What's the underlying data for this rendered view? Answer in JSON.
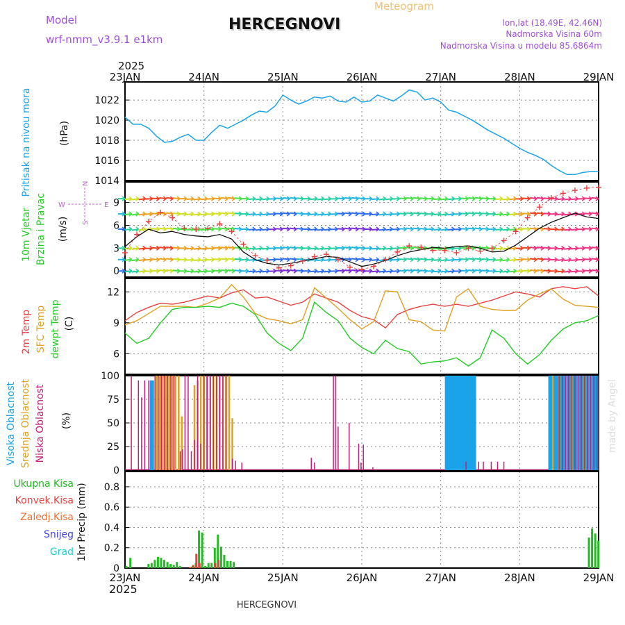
{
  "header": {
    "model_label": "Model",
    "model_name": "wrf-nmm_v3.9.1  e1km",
    "station": "HERCEGNOVI",
    "product": "Meteogram",
    "lonlat": "lon,lat (18.49E, 42.46N)",
    "elevation": "Nadmorska Visina 60m",
    "model_elevation": "Nadmorska Visina u modelu 85.6864m",
    "footer_station": "HERCEGNOVI",
    "credit": "made by Angel",
    "year": "2025"
  },
  "colors": {
    "pressure": "#1aa3e8",
    "temp2m": "#e84040",
    "sfc_temp": "#e0a020",
    "dewpt": "#22cc22",
    "high_cloud": "#1aa3e8",
    "mid_cloud": "#e0a020",
    "low_cloud": "#c0207a",
    "total_precip": "#22bb22",
    "conv_precip": "#e84040",
    "frz_precip": "#f07030",
    "snow": "#4040e0",
    "hail": "#22cccc"
  },
  "chart_data": [
    {
      "type": "line",
      "panel": "pressure",
      "ylabel": [
        "Pritisak na nivou mora",
        "(hPa)"
      ],
      "x_ticks": [
        "23JAN",
        "24JAN",
        "25JAN",
        "26JAN",
        "27JAN",
        "28JAN",
        "29JAN"
      ],
      "yticks": [
        1014,
        1016,
        1018,
        1020,
        1022
      ],
      "ylim": [
        1014,
        1023.8
      ],
      "grid": true,
      "series": [
        {
          "x": [
            0,
            0.1,
            0.2,
            0.3,
            0.4,
            0.5,
            0.6,
            0.7,
            0.8,
            0.9,
            1.0,
            1.1,
            1.2,
            1.3,
            1.4,
            1.5,
            1.6,
            1.7,
            1.8,
            1.9,
            2.0,
            2.1,
            2.2,
            2.3,
            2.4,
            2.5,
            2.6,
            2.7,
            2.8,
            2.9,
            3.0,
            3.1,
            3.2,
            3.3,
            3.4,
            3.5,
            3.6,
            3.7,
            3.8,
            3.9,
            4.0,
            4.1,
            4.2,
            4.3,
            4.4,
            4.5,
            4.6,
            4.7,
            4.8,
            4.9,
            5.0,
            5.1,
            5.2,
            5.3,
            5.4,
            5.5,
            5.6,
            5.7,
            5.8,
            5.9,
            6.0
          ],
          "values": [
            1020.3,
            1019.6,
            1019.6,
            1019.2,
            1018.4,
            1017.8,
            1017.9,
            1018.3,
            1018.6,
            1018.0,
            1018.0,
            1018.8,
            1019.5,
            1019.2,
            1019.6,
            1020.0,
            1020.5,
            1020.9,
            1020.8,
            1021.4,
            1022.5,
            1022.0,
            1021.6,
            1021.9,
            1022.3,
            1022.2,
            1022.4,
            1021.9,
            1021.8,
            1022.3,
            1021.8,
            1021.9,
            1022.5,
            1022.2,
            1021.9,
            1022.4,
            1023.0,
            1022.8,
            1022.0,
            1022.2,
            1021.8,
            1021.0,
            1020.8,
            1020.4,
            1020.0,
            1019.5,
            1019.0,
            1018.6,
            1018.2,
            1017.7,
            1017.2,
            1016.8,
            1016.5,
            1016.1,
            1015.5,
            1015.0,
            1014.6,
            1014.6,
            1014.8,
            1014.9,
            1014.9
          ]
        }
      ]
    },
    {
      "type": "line",
      "panel": "wind",
      "ylabel": [
        "10m Vjetar",
        "Brzina i Pravac",
        "(m/s)"
      ],
      "direction_key": [
        "N",
        "W",
        "E",
        "S"
      ],
      "yticks": [
        0,
        3,
        6,
        9
      ],
      "ylim": [
        -0.8,
        11.7
      ],
      "grid": true,
      "series": [
        {
          "name": "speed",
          "x": [
            0,
            0.15,
            0.3,
            0.45,
            0.6,
            0.75,
            0.9,
            1.05,
            1.2,
            1.35,
            1.5,
            1.65,
            1.8,
            1.95,
            2.1,
            2.25,
            2.4,
            2.55,
            2.7,
            2.85,
            3.0,
            3.15,
            3.3,
            3.45,
            3.6,
            3.75,
            3.9,
            4.05,
            4.2,
            4.35,
            4.5,
            4.65,
            4.8,
            4.95,
            5.1,
            5.25,
            5.4,
            5.55,
            5.7,
            5.85,
            6.0
          ],
          "values": [
            3.2,
            4.5,
            5.5,
            5.0,
            5.2,
            4.8,
            4.6,
            4.5,
            4.8,
            4.2,
            2.5,
            1.5,
            1.0,
            0.8,
            1.0,
            1.3,
            1.6,
            1.9,
            1.8,
            1.2,
            0.6,
            0.9,
            1.4,
            2.0,
            2.5,
            2.8,
            3.1,
            3.0,
            3.2,
            3.3,
            3.0,
            2.5,
            2.6,
            3.4,
            4.5,
            5.6,
            6.4,
            7.0,
            7.6,
            7.1,
            6.9
          ]
        },
        {
          "name": "gust",
          "x": [
            0,
            0.15,
            0.3,
            0.45,
            0.6,
            0.75,
            0.9,
            1.05,
            1.2,
            1.35,
            1.5,
            1.65,
            1.8,
            1.95,
            2.1,
            2.25,
            2.4,
            2.55,
            2.7,
            2.85,
            3.0,
            3.15,
            3.3,
            3.45,
            3.6,
            3.75,
            3.9,
            4.05,
            4.2,
            4.35,
            4.5,
            4.65,
            4.8,
            4.95,
            5.1,
            5.25,
            5.4,
            5.55,
            5.7,
            5.85,
            6.0
          ],
          "values": [
            2.4,
            4.8,
            6.5,
            7.7,
            7.0,
            5.6,
            5.5,
            5.6,
            6.2,
            5.2,
            3.5,
            2.0,
            1.4,
            0.4,
            0.7,
            1.3,
            1.9,
            2.2,
            1.5,
            0.5,
            0.2,
            0.6,
            1.5,
            2.5,
            3.3,
            3.1,
            2.7,
            2.7,
            2.4,
            3.0,
            2.6,
            3.0,
            4.0,
            5.2,
            7.0,
            8.4,
            9.6,
            10.2,
            10.6,
            10.9,
            11.0
          ]
        }
      ]
    },
    {
      "type": "line",
      "panel": "temperature",
      "ylabel": [
        "2m Temp",
        "SFC Temp",
        "dewpt Temp",
        "(C)"
      ],
      "yticks": [
        6,
        9,
        12
      ],
      "ylim": [
        4.0,
        13.3
      ],
      "grid": true,
      "series": [
        {
          "name": "2m Temp",
          "x": [
            0,
            0.15,
            0.3,
            0.45,
            0.6,
            0.75,
            0.9,
            1.05,
            1.2,
            1.35,
            1.5,
            1.65,
            1.8,
            1.95,
            2.1,
            2.25,
            2.4,
            2.55,
            2.7,
            2.85,
            3.0,
            3.15,
            3.3,
            3.45,
            3.6,
            3.75,
            3.9,
            4.05,
            4.2,
            4.35,
            4.5,
            4.65,
            4.8,
            4.95,
            5.1,
            5.25,
            5.4,
            5.55,
            5.7,
            5.85,
            6.0
          ],
          "values": [
            9.2,
            10.0,
            10.5,
            10.9,
            10.8,
            11.0,
            11.3,
            11.6,
            11.4,
            11.9,
            12.2,
            11.4,
            11.5,
            11.1,
            10.7,
            11.0,
            11.8,
            11.4,
            11.0,
            10.2,
            9.6,
            9.3,
            8.5,
            9.8,
            10.3,
            10.6,
            10.8,
            10.6,
            10.8,
            10.6,
            10.9,
            11.2,
            11.6,
            12.0,
            11.8,
            11.5,
            12.3,
            12.5,
            12.3,
            12.5,
            11.6
          ]
        },
        {
          "name": "SFC Temp",
          "x": [
            0,
            0.15,
            0.3,
            0.45,
            0.6,
            0.75,
            0.9,
            1.05,
            1.2,
            1.35,
            1.5,
            1.65,
            1.8,
            1.95,
            2.1,
            2.25,
            2.4,
            2.55,
            2.7,
            2.85,
            3.0,
            3.15,
            3.3,
            3.45,
            3.6,
            3.75,
            3.9,
            4.05,
            4.2,
            4.35,
            4.5,
            4.65,
            4.8,
            4.95,
            5.1,
            5.25,
            5.4,
            5.55,
            5.7,
            5.85,
            6.0
          ],
          "values": [
            8.8,
            9.2,
            9.9,
            10.6,
            10.6,
            10.6,
            10.5,
            10.9,
            11.4,
            12.7,
            11.5,
            9.9,
            9.4,
            9.2,
            8.9,
            9.3,
            12.4,
            11.4,
            10.4,
            9.3,
            8.4,
            9.1,
            12.1,
            12.0,
            9.3,
            9.1,
            8.3,
            8.2,
            11.5,
            12.3,
            10.6,
            10.3,
            10.2,
            10.2,
            11.2,
            11.8,
            12.3,
            11.3,
            10.7,
            10.6,
            10.5
          ]
        },
        {
          "name": "dewpt Temp",
          "x": [
            0,
            0.15,
            0.3,
            0.45,
            0.6,
            0.75,
            0.9,
            1.05,
            1.2,
            1.35,
            1.5,
            1.65,
            1.8,
            1.95,
            2.1,
            2.25,
            2.4,
            2.55,
            2.7,
            2.85,
            3.0,
            3.15,
            3.3,
            3.45,
            3.6,
            3.75,
            3.9,
            4.05,
            4.2,
            4.35,
            4.5,
            4.65,
            4.8,
            4.95,
            5.1,
            5.25,
            5.4,
            5.55,
            5.7,
            5.85,
            6.0
          ],
          "values": [
            8.0,
            7.0,
            7.5,
            9.0,
            10.3,
            10.5,
            10.5,
            10.6,
            10.5,
            10.9,
            10.6,
            9.8,
            8.0,
            7.0,
            6.3,
            7.5,
            11.0,
            10.0,
            9.2,
            7.5,
            6.6,
            6.0,
            7.3,
            6.5,
            6.2,
            5.0,
            5.2,
            5.3,
            5.6,
            4.8,
            5.6,
            8.3,
            7.5,
            6.0,
            5.0,
            5.9,
            7.3,
            8.4,
            9.0,
            9.2,
            9.7
          ]
        }
      ]
    },
    {
      "type": "bar",
      "panel": "cloud",
      "ylabel": [
        "Visoka Oblacnost",
        "Srednja Oblacnost",
        "Niska Oblacnost",
        "(%)"
      ],
      "yticks": [
        0,
        25,
        50,
        75,
        100
      ],
      "ylim": [
        0,
        100
      ],
      "grid": true,
      "series": [
        {
          "name": "Visoka Oblacnost",
          "x": [
            0.33,
            0.35,
            4.07,
            4.09,
            4.11,
            4.13,
            4.15,
            4.17,
            4.19,
            4.21,
            4.23,
            4.25,
            4.27,
            4.29,
            4.31,
            4.33,
            4.35,
            4.37,
            4.39,
            4.41,
            4.43,
            5.38,
            5.4,
            5.42,
            5.44,
            5.46,
            5.48,
            5.5,
            5.52,
            5.54,
            5.56,
            5.58,
            5.6,
            5.62,
            5.64,
            5.66,
            5.68,
            5.7,
            5.72,
            5.74,
            5.76,
            5.78,
            5.8,
            5.82,
            5.84,
            5.86,
            5.88,
            5.9,
            5.92,
            5.94,
            5.96,
            5.98
          ],
          "values": [
            95,
            95,
            100,
            100,
            100,
            100,
            100,
            100,
            100,
            100,
            100,
            100,
            100,
            100,
            100,
            100,
            100,
            100,
            100,
            100,
            100,
            100,
            100,
            100,
            100,
            100,
            100,
            100,
            100,
            100,
            100,
            100,
            100,
            100,
            100,
            100,
            100,
            100,
            100,
            100,
            100,
            100,
            100,
            100,
            100,
            100,
            100,
            100,
            100,
            100,
            100,
            100
          ]
        },
        {
          "name": "Srednja Oblacnost",
          "x": [
            0.4,
            0.44,
            0.48,
            0.52,
            0.56,
            0.6,
            0.64,
            0.68,
            0.72,
            0.76,
            0.88,
            0.92,
            0.96,
            1.0,
            1.04,
            1.08,
            1.12,
            1.16,
            1.2,
            1.24,
            1.28,
            1.32,
            1.36,
            1.4,
            5.42,
            5.5,
            5.58,
            5.66,
            5.74,
            5.82,
            5.9
          ],
          "values": [
            100,
            100,
            100,
            100,
            100,
            100,
            100,
            100,
            57,
            0,
            90,
            95,
            100,
            100,
            100,
            100,
            100,
            100,
            100,
            100,
            100,
            100,
            55,
            0,
            100,
            100,
            100,
            100,
            100,
            100,
            100
          ]
        },
        {
          "name": "Niska Oblacnost",
          "x": [
            0.08,
            0.17,
            0.21,
            0.25,
            0.3,
            0.38,
            0.42,
            0.46,
            0.5,
            0.54,
            0.58,
            0.62,
            0.7,
            0.73,
            0.76,
            0.8,
            0.84,
            0.88,
            0.92,
            0.96,
            1.0,
            1.04,
            1.08,
            1.12,
            1.16,
            1.2,
            1.24,
            1.28,
            1.36,
            1.4,
            1.48,
            2.36,
            2.4,
            2.64,
            2.67,
            2.7,
            2.84,
            2.96,
            2.99,
            3.02,
            3.14,
            4.32,
            4.48,
            4.54,
            4.64,
            4.72,
            4.8,
            5.5,
            5.54,
            5.58,
            5.62,
            5.66,
            5.7,
            5.74,
            5.78,
            5.82,
            5.86,
            5.9,
            5.94,
            5.98
          ],
          "values": [
            100,
            95,
            77,
            95,
            95,
            100,
            100,
            100,
            100,
            100,
            100,
            100,
            20,
            22,
            100,
            100,
            20,
            32,
            100,
            28,
            100,
            100,
            100,
            100,
            100,
            100,
            100,
            100,
            12,
            10,
            8,
            13,
            8,
            100,
            100,
            46,
            50,
            28,
            8,
            27,
            3,
            9,
            9,
            9,
            9,
            9,
            9,
            100,
            100,
            100,
            100,
            100,
            100,
            100,
            100,
            100,
            100,
            100,
            100,
            100
          ]
        }
      ]
    },
    {
      "type": "bar",
      "panel": "precipitation",
      "ylabel": [
        "1hr Precip (mm)"
      ],
      "legend": [
        "Ukupna Kisa",
        "Konvek.Kisa",
        "Zaledj.Kisa",
        "Snijeg",
        "Grad"
      ],
      "yticks": [
        0,
        0.2,
        0.4,
        0.6,
        0.8
      ],
      "ylim": [
        0,
        0.95
      ],
      "grid": true,
      "series": [
        {
          "name": "Ukupna Kisa",
          "x": [
            0.02,
            0.07,
            0.3,
            0.34,
            0.38,
            0.42,
            0.46,
            0.5,
            0.54,
            0.58,
            0.62,
            0.66,
            0.7,
            0.86,
            0.9,
            0.94,
            0.98,
            1.02,
            1.06,
            1.1,
            1.14,
            1.18,
            1.22,
            1.26,
            1.3,
            1.34,
            1.38,
            5.88,
            5.92,
            5.96,
            6.0
          ],
          "values": [
            0.02,
            0.1,
            0.04,
            0.05,
            0.08,
            0.11,
            0.1,
            0.08,
            0.06,
            0.04,
            0.03,
            0.06,
            0.02,
            0.02,
            0.05,
            0.37,
            0.35,
            0.02,
            0.05,
            0.05,
            0.2,
            0.33,
            0.21,
            0.13,
            0.07,
            0.07,
            0.06,
            0.3,
            0.39,
            0.34,
            0.27
          ]
        },
        {
          "name": "Konvek.Kisa",
          "x": [
            0.84,
            0.88,
            0.92,
            0.96,
            1.16,
            1.2
          ],
          "values": [
            0.01,
            0.03,
            0.14,
            0.05,
            0.05,
            0.08
          ]
        }
      ]
    }
  ]
}
